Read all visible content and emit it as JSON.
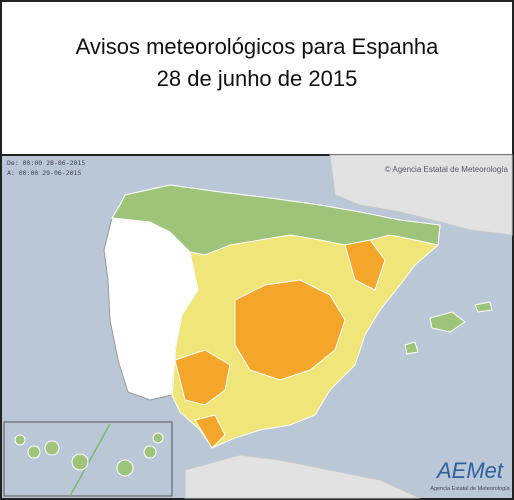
{
  "header": {
    "title": "Avisos meteorológicos para Espanha",
    "subtitle": "28 de junho de 2015"
  },
  "map": {
    "valid_from": "De: 00:00 28-06-2015",
    "valid_to": "A:  00:00 29-06-2015",
    "credit": "© Agencia Estatal de Meteorología"
  },
  "logo": {
    "name": "AEMet",
    "caption": "Agencia Estatal de Meteorología"
  }
}
